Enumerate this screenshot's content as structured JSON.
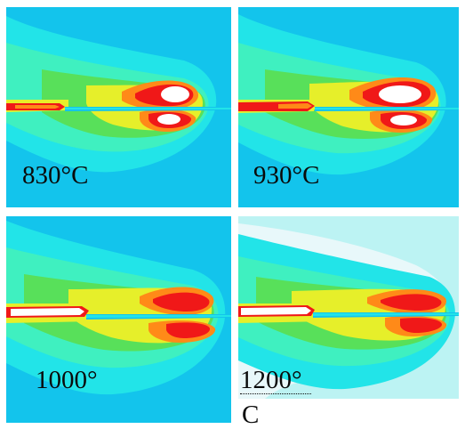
{
  "panels": [
    {
      "id": "p830",
      "label": "830°C"
    },
    {
      "id": "p930",
      "label": "930°C"
    },
    {
      "id": "p1000",
      "label": "1000°"
    },
    {
      "id": "p1200",
      "label": "1200°"
    }
  ],
  "trailing_c": "C",
  "colors": {
    "background_field": "#13c4ec",
    "cyan": "#22e4e8",
    "teal": "#3ff0c0",
    "green": "#58e05a",
    "yellow": "#e6ef2a",
    "orange": "#ff8a18",
    "red": "#f01818",
    "white": "#ffffff"
  }
}
